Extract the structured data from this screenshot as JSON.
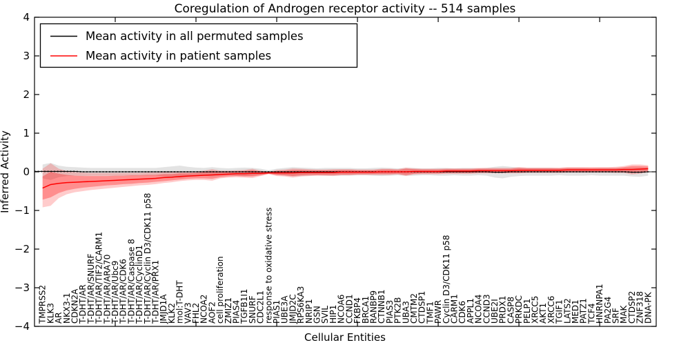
{
  "chart_data": {
    "type": "line",
    "title": "Coregulation of Androgen receptor activity -- 514 samples",
    "xlabel": "Cellular Entities",
    "ylabel": "Inferred Activity",
    "ylim": [
      -4,
      4
    ],
    "xlim": [
      0,
      77
    ],
    "grid": false,
    "ytick_values": [
      4,
      3,
      2,
      1,
      0,
      -1,
      -2,
      -3,
      -4
    ],
    "ytick_labels": [
      "4",
      "3",
      "2",
      "1",
      "0",
      "−1",
      "−2",
      "−3",
      "−4"
    ],
    "xtick_major_every": 10,
    "legend": {
      "position": "upper left",
      "entries": [
        {
          "label": "Mean activity in all permuted samples",
          "color": "#000000"
        },
        {
          "label": "Mean activity in patient samples",
          "color": "#ff0000"
        }
      ]
    },
    "colors": {
      "permuted_line": "#000000",
      "patient_line": "#ff0000",
      "permuted_band": "rgba(0,0,0,0.11)",
      "patient_band_outer": "rgba(255,0,0,0.20)",
      "patient_band_inner": "rgba(255,0,0,0.30)"
    },
    "categories": [
      "TMPRSS2",
      "KLK3",
      "AR",
      "NKX3-1",
      "CDKN2A",
      "T-DHT/AR",
      "T-DHT/AR/SNURF",
      "T-DHT/AR/TIF2/CARM1",
      "T-DHT/AR/ARA70",
      "T-DHT/AR/Ubc9",
      "T-DHT/AR/CDK6",
      "T-DHT/AR/Caspase 8",
      "T-DHT/AR/CyclinD1",
      "T-DHT/AR/Cyclin D3/CDK11 p58",
      "T-DHT/AR/PRX1",
      "JMJD1A",
      "KLK2",
      "mol:T-DHT",
      "VAV3",
      "FHL2",
      "NCOA2",
      "AOF2",
      "cell proliferation",
      "ZMIZ1",
      "PIAS4",
      "TGFB1I1",
      "SNURF",
      "CDC2L1",
      "response to oxidative stress",
      "PIAS1",
      "UBE3A",
      "JMJD2C",
      "RPS6KA3",
      "NRIP1",
      "GSN",
      "SVIL",
      "HIP1",
      "NCOA6",
      "CCND1",
      "FKBP4",
      "BRCA1",
      "RANBP9",
      "CTNNB1",
      "PIAS3",
      "PTK2B",
      "UBA3",
      "CMTM2",
      "CTDSP1",
      "TMF1",
      "PAWR",
      "Cyclin D3/CDK11 p58",
      "CARM1",
      "CDK6",
      "APPL1",
      "NCOA4",
      "CCND3",
      "UBE2I",
      "PRDX1",
      "CASP8",
      "PRKDC",
      "PELP1",
      "XRCC5",
      "AKT1",
      "XRCC6",
      "TGIF1",
      "LATS2",
      "MED1",
      "PATZ1",
      "TCF4",
      "HNRNPA1",
      "PA2G4",
      "SRF",
      "MAK",
      "CTDSP2",
      "ZNF318",
      "DNA-PK"
    ],
    "series": [
      {
        "name": "Mean activity in all permuted samples",
        "color": "#000000",
        "values": [
          0.01,
          0.01,
          0.01,
          0.01,
          0.01,
          0.0,
          0.0,
          0.0,
          0.0,
          0.0,
          0.0,
          0.0,
          0.0,
          0.0,
          0.0,
          0.0,
          0.0,
          0.0,
          0.0,
          0.0,
          0.0,
          0.0,
          0.0,
          0.0,
          0.0,
          0.0,
          0.0,
          0.0,
          0.0,
          0.0,
          0.0,
          0.0,
          0.0,
          0.0,
          0.0,
          0.0,
          0.0,
          0.0,
          0.0,
          0.0,
          0.0,
          0.0,
          0.0,
          0.0,
          0.0,
          0.0,
          0.0,
          0.0,
          0.0,
          0.0,
          0.0,
          0.0,
          0.0,
          0.0,
          0.0,
          0.0,
          -0.01,
          -0.01,
          0.0,
          0.0,
          0.0,
          0.0,
          0.0,
          0.0,
          0.0,
          0.0,
          0.0,
          0.0,
          0.0,
          0.0,
          0.0,
          0.0,
          0.0,
          -0.01,
          -0.01,
          0.0
        ]
      },
      {
        "name": "Mean activity in patient samples",
        "color": "#ff0000",
        "values": [
          -0.42,
          -0.33,
          -0.3,
          -0.28,
          -0.27,
          -0.26,
          -0.25,
          -0.24,
          -0.23,
          -0.22,
          -0.21,
          -0.2,
          -0.19,
          -0.18,
          -0.17,
          -0.15,
          -0.14,
          -0.12,
          -0.11,
          -0.1,
          -0.09,
          -0.08,
          -0.07,
          -0.06,
          -0.05,
          -0.05,
          -0.04,
          -0.04,
          -0.03,
          -0.03,
          -0.03,
          -0.03,
          -0.02,
          -0.02,
          -0.02,
          -0.02,
          -0.02,
          -0.01,
          -0.01,
          -0.01,
          -0.01,
          -0.01,
          0.0,
          0.0,
          0.0,
          0.0,
          0.01,
          0.01,
          0.01,
          0.01,
          0.02,
          0.02,
          0.02,
          0.02,
          0.03,
          0.03,
          0.03,
          0.03,
          0.03,
          0.04,
          0.04,
          0.04,
          0.04,
          0.04,
          0.04,
          0.05,
          0.05,
          0.05,
          0.05,
          0.05,
          0.05,
          0.05,
          0.06,
          0.06,
          0.07,
          0.08
        ]
      }
    ],
    "bands": [
      {
        "name": "permuted-confidence-band",
        "center": "permuted-mean",
        "color": "rgba(0,0,0,0.11)",
        "halfwidths": [
          0.18,
          0.22,
          0.15,
          0.12,
          0.11,
          0.11,
          0.1,
          0.1,
          0.1,
          0.1,
          0.1,
          0.1,
          0.1,
          0.1,
          0.1,
          0.12,
          0.14,
          0.16,
          0.13,
          0.11,
          0.1,
          0.12,
          0.1,
          0.09,
          0.1,
          0.11,
          0.1,
          0.08,
          0.04,
          0.08,
          0.1,
          0.12,
          0.11,
          0.1,
          0.09,
          0.1,
          0.1,
          0.1,
          0.1,
          0.09,
          0.09,
          0.1,
          0.11,
          0.1,
          0.09,
          0.1,
          0.1,
          0.09,
          0.09,
          0.1,
          0.1,
          0.09,
          0.1,
          0.1,
          0.09,
          0.1,
          0.14,
          0.16,
          0.13,
          0.11,
          0.1,
          0.1,
          0.1,
          0.1,
          0.09,
          0.1,
          0.1,
          0.1,
          0.09,
          0.1,
          0.1,
          0.1,
          0.1,
          0.11,
          0.12,
          0.1
        ]
      },
      {
        "name": "patient-confidence-band-outer",
        "center": "patient-mean",
        "color": "rgba(255,0,0,0.20)",
        "halfwidths": [
          0.5,
          0.55,
          0.38,
          0.3,
          0.26,
          0.24,
          0.22,
          0.21,
          0.2,
          0.19,
          0.18,
          0.17,
          0.16,
          0.16,
          0.15,
          0.14,
          0.13,
          0.12,
          0.11,
          0.11,
          0.12,
          0.15,
          0.1,
          0.09,
          0.09,
          0.1,
          0.12,
          0.07,
          0.03,
          0.08,
          0.09,
          0.12,
          0.1,
          0.09,
          0.08,
          0.08,
          0.09,
          0.08,
          0.08,
          0.07,
          0.07,
          0.07,
          0.08,
          0.08,
          0.07,
          0.11,
          0.08,
          0.07,
          0.07,
          0.07,
          0.07,
          0.07,
          0.07,
          0.07,
          0.07,
          0.07,
          0.07,
          0.07,
          0.07,
          0.08,
          0.07,
          0.07,
          0.07,
          0.07,
          0.07,
          0.07,
          0.07,
          0.07,
          0.07,
          0.07,
          0.07,
          0.08,
          0.09,
          0.13,
          0.12,
          0.09
        ]
      },
      {
        "name": "patient-confidence-band-inner",
        "center": "patient-mean",
        "color": "rgba(255,0,0,0.30)",
        "halfwidths": [
          0.3,
          0.33,
          0.25,
          0.2,
          0.17,
          0.15,
          0.14,
          0.13,
          0.12,
          0.12,
          0.11,
          0.11,
          0.1,
          0.1,
          0.09,
          0.09,
          0.08,
          0.08,
          0.07,
          0.07,
          0.08,
          0.1,
          0.07,
          0.06,
          0.06,
          0.07,
          0.08,
          0.05,
          0.02,
          0.05,
          0.06,
          0.08,
          0.07,
          0.06,
          0.06,
          0.06,
          0.06,
          0.06,
          0.06,
          0.05,
          0.05,
          0.05,
          0.06,
          0.06,
          0.05,
          0.08,
          0.06,
          0.05,
          0.05,
          0.05,
          0.05,
          0.05,
          0.05,
          0.05,
          0.05,
          0.05,
          0.05,
          0.05,
          0.05,
          0.06,
          0.05,
          0.05,
          0.05,
          0.05,
          0.05,
          0.05,
          0.05,
          0.05,
          0.05,
          0.05,
          0.05,
          0.05,
          0.06,
          0.09,
          0.08,
          0.06
        ]
      }
    ]
  }
}
